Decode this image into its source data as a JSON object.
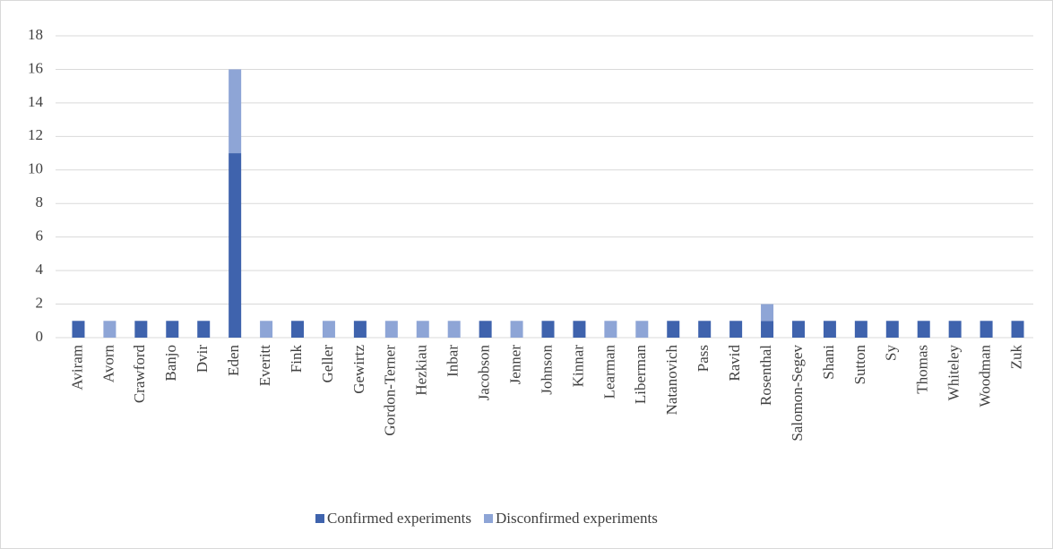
{
  "chart_data": {
    "type": "stacked_bar",
    "categories": [
      "Aviram",
      "Avorn",
      "Crawford",
      "Banjo",
      "Dvir",
      "Eden",
      "Everitt",
      "Fink",
      "Geller",
      "Gewirtz",
      "Gordon-Terner",
      "Hezkiau",
      "Inbar",
      "Jacobson",
      "Jenner",
      "Johnson",
      "Kinnar",
      "Learman",
      "Liberman",
      "Natanovich",
      "Pass",
      "Ravid",
      "Rosenthal",
      "Salomon-Segev",
      "Shani",
      "Sutton",
      "Sy",
      "Thomas",
      "Whiteley",
      "Woodman",
      "Zuk"
    ],
    "series": [
      {
        "name": "Confirmed experiments",
        "color": "#3f63ad",
        "values": [
          1,
          0,
          1,
          1,
          1,
          11,
          0,
          1,
          0,
          1,
          0,
          0,
          0,
          1,
          0,
          1,
          1,
          0,
          0,
          1,
          1,
          1,
          1,
          1,
          1,
          1,
          1,
          1,
          1,
          1,
          1
        ]
      },
      {
        "name": "Disconfirmed experiments",
        "color": "#8ea5d6",
        "values": [
          0,
          1,
          0,
          0,
          0,
          5,
          1,
          0,
          1,
          0,
          1,
          1,
          1,
          0,
          1,
          0,
          0,
          1,
          1,
          0,
          0,
          0,
          1,
          0,
          0,
          0,
          0,
          0,
          0,
          0,
          0
        ]
      }
    ],
    "ylim": [
      0,
      18
    ],
    "yticks": [
      0,
      2,
      4,
      6,
      8,
      10,
      12,
      14,
      16,
      18
    ],
    "grid": true,
    "legend": "bottom"
  }
}
